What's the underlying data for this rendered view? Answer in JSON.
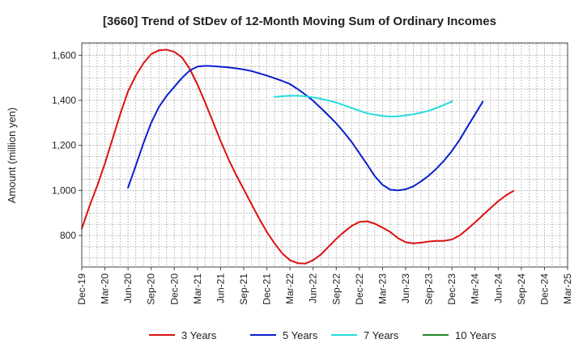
{
  "chart_data": {
    "type": "line",
    "title": "[3660]  Trend of StDev of 12-Month Moving Sum of Ordinary Incomes",
    "xlabel": "",
    "ylabel": "Amount (million yen)",
    "x_ticks": [
      "Dec-19",
      "Mar-20",
      "Jun-20",
      "Sep-20",
      "Dec-20",
      "Mar-21",
      "Jun-21",
      "Sep-21",
      "Dec-21",
      "Mar-22",
      "Jun-22",
      "Sep-22",
      "Dec-22",
      "Mar-23",
      "Jun-23",
      "Sep-23",
      "Dec-23",
      "Mar-24",
      "Jun-24",
      "Sep-24",
      "Dec-24",
      "Mar-25"
    ],
    "y_ticks": [
      800,
      1000,
      1200,
      1400,
      1600
    ],
    "y_tick_labels": [
      "800",
      "1,000",
      "1,200",
      "1,400",
      "1,600"
    ],
    "ylim": [
      660,
      1655
    ],
    "grid": true,
    "legend_position": "bottom",
    "series": [
      {
        "name": "3 Years",
        "color": "#dd1111",
        "values": [
          [
            0,
            830
          ],
          [
            1,
            930
          ],
          [
            2,
            1020
          ],
          [
            3,
            1120
          ],
          [
            4,
            1230
          ],
          [
            5,
            1340
          ],
          [
            6,
            1440
          ],
          [
            7,
            1510
          ],
          [
            8,
            1565
          ],
          [
            9,
            1605
          ],
          [
            10,
            1622
          ],
          [
            11,
            1625
          ],
          [
            12,
            1615
          ],
          [
            13,
            1590
          ],
          [
            14,
            1540
          ],
          [
            15,
            1470
          ],
          [
            16,
            1390
          ],
          [
            17,
            1305
          ],
          [
            18,
            1220
          ],
          [
            19,
            1140
          ],
          [
            20,
            1070
          ],
          [
            21,
            1005
          ],
          [
            22,
            940
          ],
          [
            23,
            875
          ],
          [
            24,
            815
          ],
          [
            25,
            765
          ],
          [
            26,
            720
          ],
          [
            27,
            690
          ],
          [
            28,
            677
          ],
          [
            29,
            675
          ],
          [
            30,
            690
          ],
          [
            31,
            715
          ],
          [
            32,
            750
          ],
          [
            33,
            785
          ],
          [
            34,
            815
          ],
          [
            35,
            843
          ],
          [
            36,
            860
          ],
          [
            37,
            863
          ],
          [
            38,
            852
          ],
          [
            39,
            835
          ],
          [
            40,
            815
          ],
          [
            41,
            788
          ],
          [
            42,
            770
          ],
          [
            43,
            765
          ],
          [
            44,
            768
          ],
          [
            45,
            773
          ],
          [
            46,
            776
          ],
          [
            47,
            776
          ],
          [
            48,
            782
          ],
          [
            49,
            800
          ],
          [
            50,
            828
          ],
          [
            51,
            858
          ],
          [
            52,
            890
          ],
          [
            53,
            922
          ],
          [
            54,
            952
          ],
          [
            55,
            978
          ],
          [
            56,
            998
          ]
        ]
      },
      {
        "name": "5 Years",
        "color": "#0a1fcc",
        "values": [
          [
            6,
            1012
          ],
          [
            7,
            1110
          ],
          [
            8,
            1210
          ],
          [
            9,
            1300
          ],
          [
            10,
            1370
          ],
          [
            11,
            1420
          ],
          [
            12,
            1460
          ],
          [
            13,
            1500
          ],
          [
            14,
            1532
          ],
          [
            15,
            1550
          ],
          [
            16,
            1553
          ],
          [
            17,
            1552
          ],
          [
            18,
            1549
          ],
          [
            19,
            1546
          ],
          [
            20,
            1542
          ],
          [
            21,
            1537
          ],
          [
            22,
            1530
          ],
          [
            23,
            1520
          ],
          [
            24,
            1510
          ],
          [
            25,
            1498
          ],
          [
            26,
            1486
          ],
          [
            27,
            1472
          ],
          [
            28,
            1450
          ],
          [
            29,
            1425
          ],
          [
            30,
            1398
          ],
          [
            31,
            1366
          ],
          [
            32,
            1332
          ],
          [
            33,
            1298
          ],
          [
            34,
            1258
          ],
          [
            35,
            1215
          ],
          [
            36,
            1165
          ],
          [
            37,
            1115
          ],
          [
            38,
            1063
          ],
          [
            39,
            1025
          ],
          [
            40,
            1003
          ],
          [
            41,
            1000
          ],
          [
            42,
            1005
          ],
          [
            43,
            1018
          ],
          [
            44,
            1040
          ],
          [
            45,
            1066
          ],
          [
            46,
            1097
          ],
          [
            47,
            1133
          ],
          [
            48,
            1175
          ],
          [
            49,
            1225
          ],
          [
            50,
            1282
          ],
          [
            51,
            1338
          ],
          [
            52,
            1394
          ]
        ]
      },
      {
        "name": "7 Years",
        "color": "#22dddd",
        "values": [
          [
            25,
            1415
          ],
          [
            26,
            1418
          ],
          [
            27,
            1420
          ],
          [
            28,
            1420
          ],
          [
            29,
            1418
          ],
          [
            30,
            1413
          ],
          [
            31,
            1407
          ],
          [
            32,
            1399
          ],
          [
            33,
            1390
          ],
          [
            34,
            1378
          ],
          [
            35,
            1366
          ],
          [
            36,
            1354
          ],
          [
            37,
            1342
          ],
          [
            38,
            1336
          ],
          [
            39,
            1331
          ],
          [
            40,
            1328
          ],
          [
            41,
            1329
          ],
          [
            42,
            1333
          ],
          [
            43,
            1338
          ],
          [
            44,
            1345
          ],
          [
            45,
            1354
          ],
          [
            46,
            1366
          ],
          [
            47,
            1380
          ],
          [
            48,
            1395
          ]
        ]
      },
      {
        "name": "10 Years",
        "color": "#228822",
        "values": []
      }
    ]
  }
}
